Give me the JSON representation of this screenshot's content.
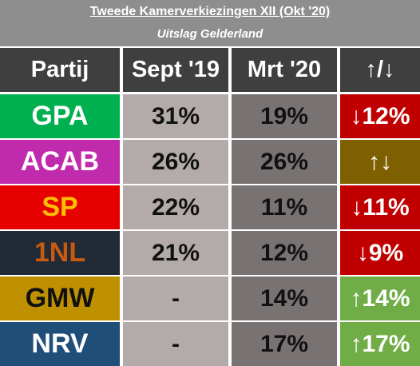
{
  "header": {
    "title": "Tweede Kamerverkiezingen XII (Okt '20)",
    "subtitle": "Uitslag Gelderland"
  },
  "columns": {
    "party": "Partij",
    "sept": "Sept '19",
    "mrt": "Mrt '20",
    "change": "↑/↓"
  },
  "rows": [
    {
      "party": "GPA",
      "sept": "31%",
      "mrt": "19%",
      "change": "↓12%",
      "party_bg": "#00b050",
      "party_color": "#ffffff",
      "change_bg": "#c00000"
    },
    {
      "party": "ACAB",
      "sept": "26%",
      "mrt": "26%",
      "change": "↑↓",
      "party_bg": "#c02bad",
      "party_color": "#ffffff",
      "change_bg": "#7f6000"
    },
    {
      "party": "SP",
      "sept": "22%",
      "mrt": "11%",
      "change": "↓11%",
      "party_bg": "#e60000",
      "party_color": "#ffc000",
      "change_bg": "#c00000"
    },
    {
      "party": "1NL",
      "sept": "21%",
      "mrt": "12%",
      "change": "↓9%",
      "party_bg": "#222a35",
      "party_color": "#c55a11",
      "change_bg": "#c00000"
    },
    {
      "party": "GMW",
      "sept": "-",
      "mrt": "14%",
      "change": "↑14%",
      "party_bg": "#bf9000",
      "party_color": "#111111",
      "change_bg": "#70ad47"
    },
    {
      "party": "NRV",
      "sept": "-",
      "mrt": "17%",
      "change": "↑17%",
      "party_bg": "#1f4e79",
      "party_color": "#ffffff",
      "change_bg": "#70ad47"
    }
  ]
}
